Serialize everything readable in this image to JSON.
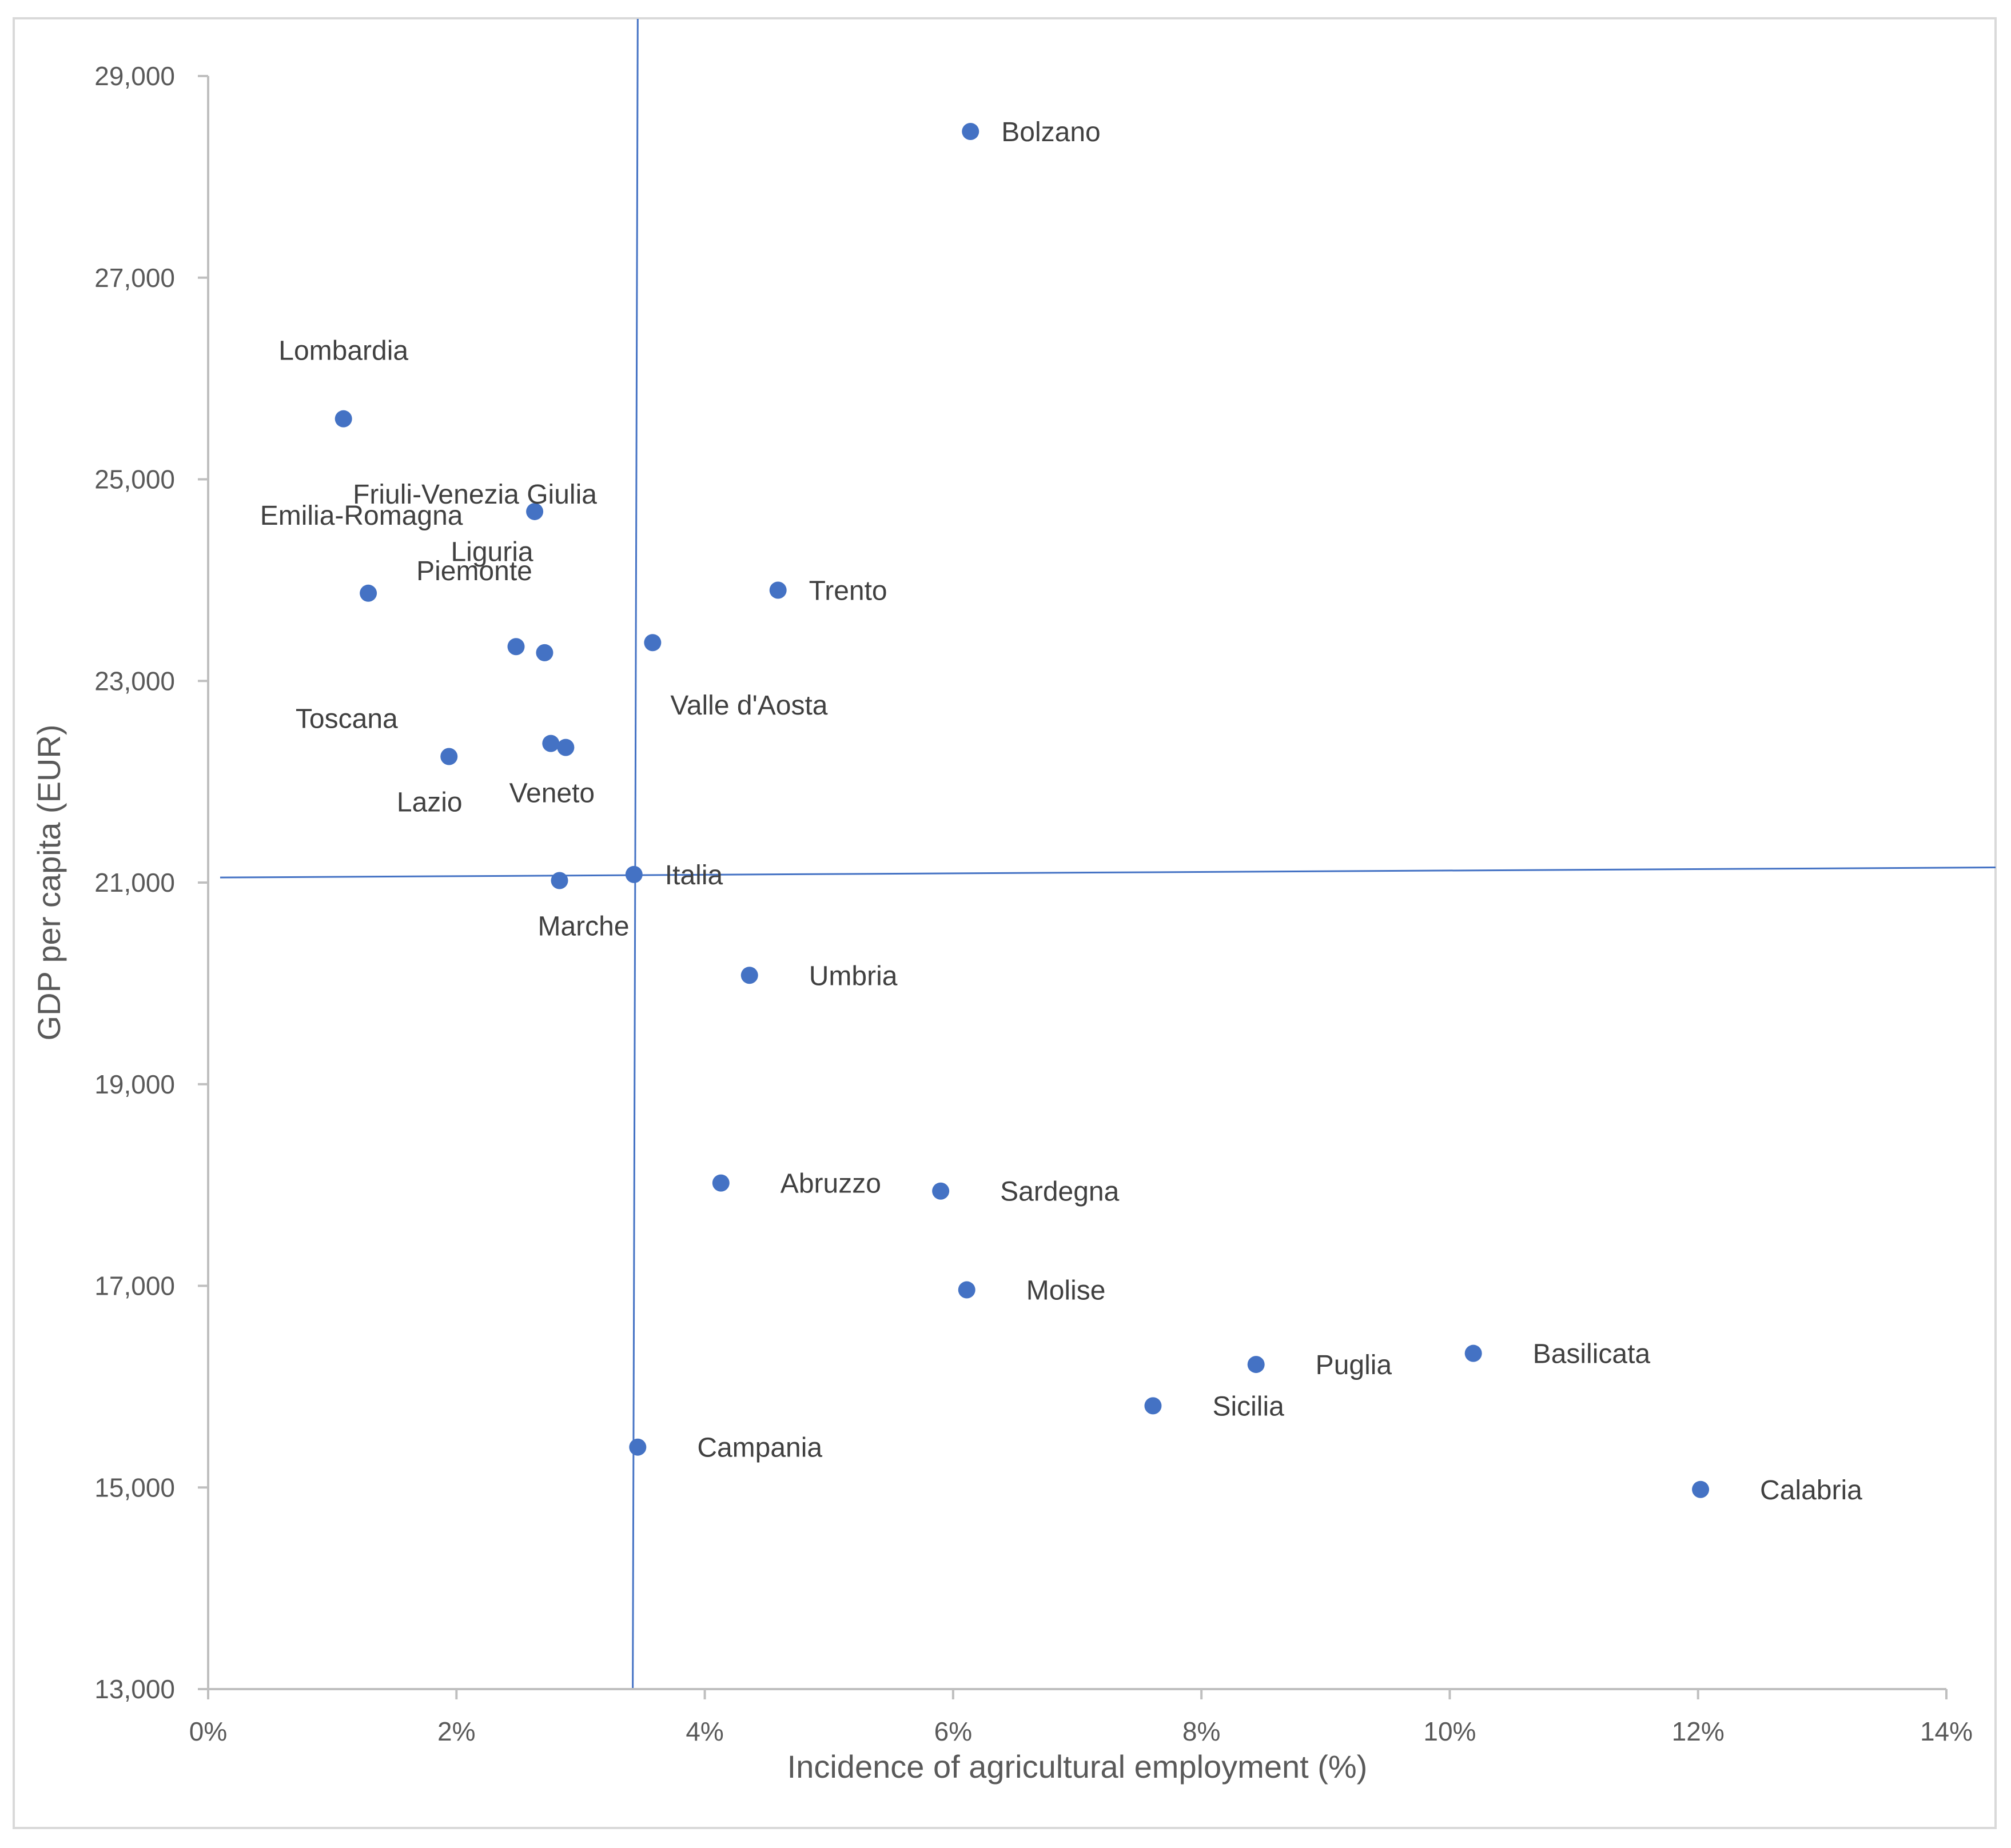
{
  "chart_data": {
    "type": "scatter",
    "title": "",
    "xlabel": "Incidence of agricultural employment (%)",
    "ylabel": "GDP per capita (EUR)",
    "xlim": [
      0,
      14
    ],
    "ylim": [
      13000,
      29000
    ],
    "x_ticks": [
      0,
      2,
      4,
      6,
      8,
      10,
      12,
      14
    ],
    "x_tick_labels": [
      "0%",
      "2%",
      "4%",
      "6%",
      "8%",
      "10%",
      "12%",
      "14%"
    ],
    "y_ticks": [
      13000,
      15000,
      17000,
      19000,
      21000,
      23000,
      25000,
      27000,
      29000
    ],
    "y_tick_labels": [
      "13,000",
      "15,000",
      "17,000",
      "19,000",
      "21,000",
      "23,000",
      "25,000",
      "27,000",
      "29,000"
    ],
    "grid": false,
    "marker_color": "#4472c4",
    "axis_color": "#bfbfbf",
    "reference_line_color": "#4472c4",
    "reference_lines": {
      "vertical_x_top": 3.46,
      "vertical_x_bottom": 3.42,
      "horizontal_y_left": 21050,
      "horizontal_y_right": 21150
    },
    "points": [
      {
        "name": "Bolzano",
        "x": 6.14,
        "y": 28450
      },
      {
        "name": "Lombardia",
        "x": 1.09,
        "y": 25600
      },
      {
        "name": "Friuli-Venezia Giulia",
        "x": 2.63,
        "y": 24680
      },
      {
        "name": "Emilia-Romagna",
        "x": 1.29,
        "y": 23870
      },
      {
        "name": "Trento",
        "x": 4.59,
        "y": 23900
      },
      {
        "name": "Liguria",
        "x": 2.48,
        "y": 23340
      },
      {
        "name": "Piemonte",
        "x": 2.71,
        "y": 23280
      },
      {
        "name": "Valle d'Aosta",
        "x": 3.58,
        "y": 23380
      },
      {
        "name": "Toscana",
        "x": 2.76,
        "y": 22380
      },
      {
        "name": "Veneto",
        "x": 2.88,
        "y": 22340
      },
      {
        "name": "Lazio",
        "x": 1.94,
        "y": 22250
      },
      {
        "name": "Italia",
        "x": 3.43,
        "y": 21080
      },
      {
        "name": "Marche",
        "x": 2.83,
        "y": 21020
      },
      {
        "name": "Umbria",
        "x": 4.36,
        "y": 20080
      },
      {
        "name": "Abruzzo",
        "x": 4.13,
        "y": 18020
      },
      {
        "name": "Sardegna",
        "x": 5.9,
        "y": 17940
      },
      {
        "name": "Molise",
        "x": 6.11,
        "y": 16960
      },
      {
        "name": "Basilicata",
        "x": 10.19,
        "y": 16330
      },
      {
        "name": "Puglia",
        "x": 8.44,
        "y": 16220
      },
      {
        "name": "Sicilia",
        "x": 7.61,
        "y": 15810
      },
      {
        "name": "Campania",
        "x": 3.46,
        "y": 15400
      },
      {
        "name": "Calabria",
        "x": 12.02,
        "y": 14980
      }
    ]
  }
}
